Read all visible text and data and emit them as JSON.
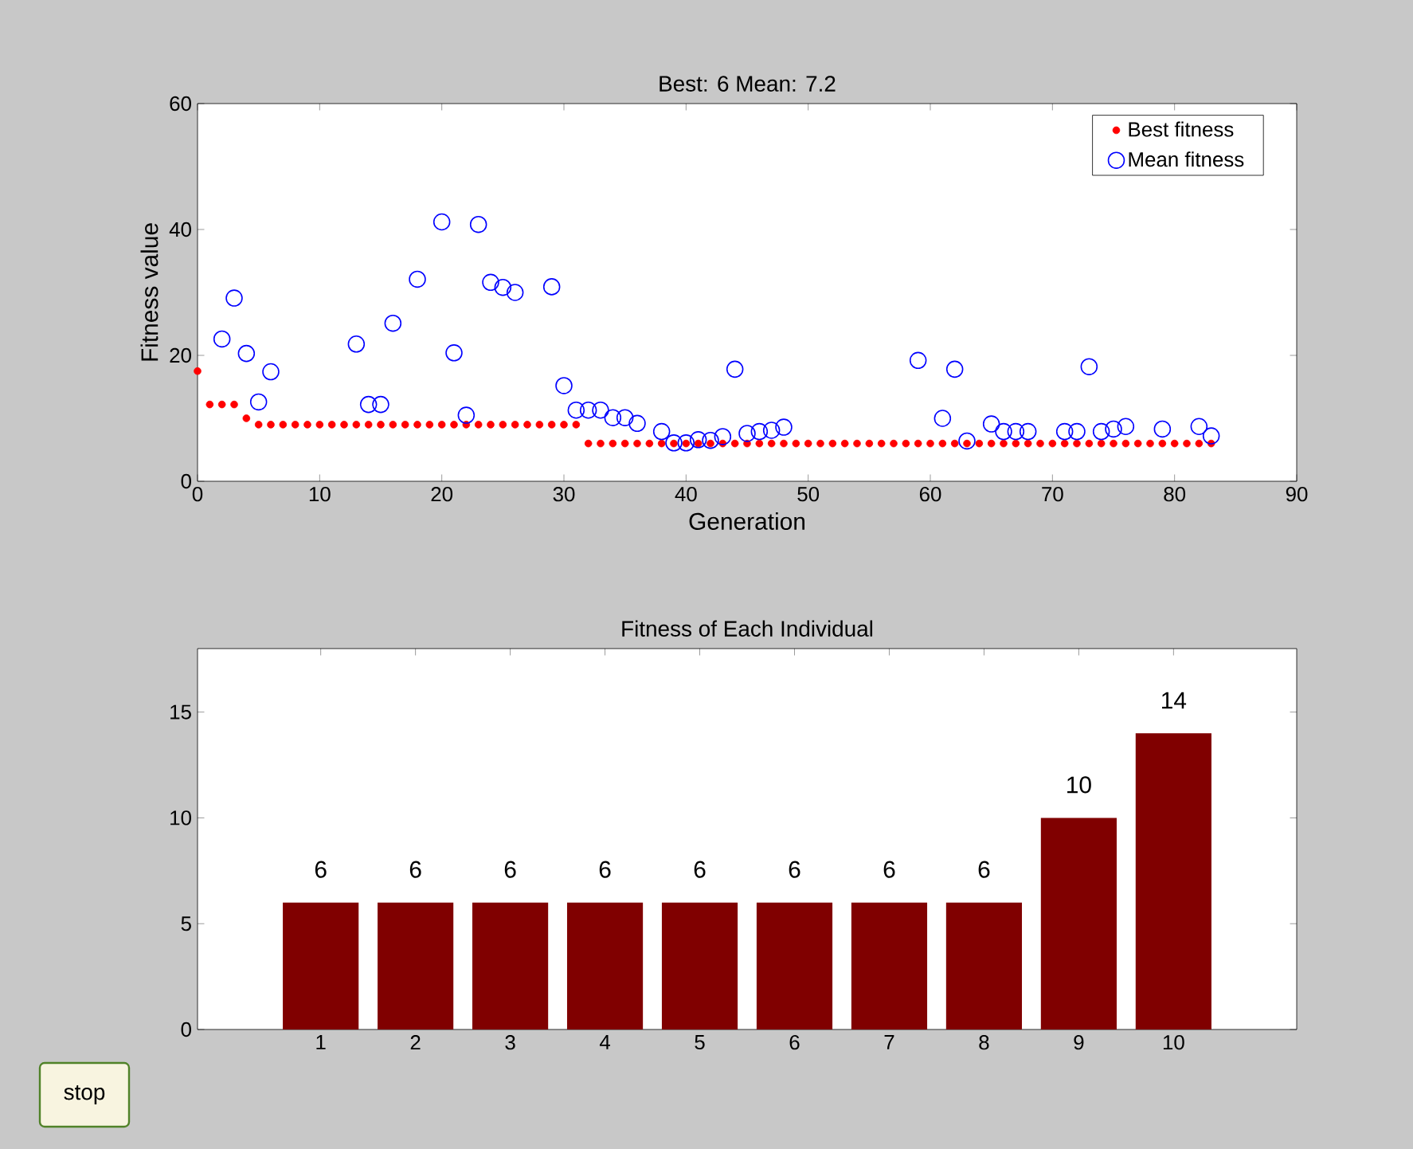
{
  "chart_data": [
    {
      "type": "scatter",
      "title": "Best: 6 Mean: 7.2",
      "xlabel": "Generation",
      "ylabel": "Fitness value",
      "xlim": [
        0,
        90
      ],
      "ylim": [
        0,
        60
      ],
      "xticks": [
        0,
        10,
        20,
        30,
        40,
        50,
        60,
        70,
        80,
        90
      ],
      "yticks": [
        0,
        20,
        40,
        60
      ],
      "legend": "top right",
      "marker": "circle",
      "series": [
        {
          "name": "Best fitness",
          "color": "#ff0000",
          "x": [
            0,
            1,
            2,
            3,
            4,
            5,
            6,
            7,
            8,
            9,
            10,
            11,
            12,
            13,
            14,
            15,
            16,
            17,
            18,
            19,
            20,
            21,
            22,
            23,
            24,
            25,
            26,
            27,
            28,
            29,
            30,
            31,
            32,
            33,
            34,
            35,
            36,
            37,
            38,
            39,
            40,
            41,
            42,
            43,
            44,
            45,
            46,
            47,
            48,
            49,
            50,
            51,
            52,
            53,
            54,
            55,
            56,
            57,
            58,
            59,
            60,
            61,
            62,
            63,
            64,
            65,
            66,
            67,
            68,
            69,
            70,
            71,
            72,
            73,
            74,
            75,
            76,
            77,
            78,
            79,
            80,
            81,
            82,
            83
          ],
          "values": [
            17.5,
            12.2,
            12.2,
            12.2,
            10,
            9,
            9,
            9,
            9,
            9,
            9,
            9,
            9,
            9,
            9,
            9,
            9,
            9,
            9,
            9,
            9,
            9,
            9,
            9,
            9,
            9,
            9,
            9,
            9,
            9,
            9,
            9,
            6,
            6,
            6,
            6,
            6,
            6,
            6,
            6,
            6,
            6,
            6,
            6,
            6,
            6,
            6,
            6,
            6,
            6,
            6,
            6,
            6,
            6,
            6,
            6,
            6,
            6,
            6,
            6,
            6,
            6,
            6,
            6,
            6,
            6,
            6,
            6,
            6,
            6,
            6,
            6,
            6,
            6,
            6,
            6,
            6,
            6,
            6,
            6,
            6,
            6,
            6,
            6
          ]
        },
        {
          "name": "Mean fitness",
          "color": "#0000ff",
          "x": [
            2,
            3,
            4,
            5,
            6,
            13,
            14,
            15,
            16,
            18,
            20,
            21,
            22,
            23,
            24,
            25,
            26,
            29,
            30,
            31,
            32,
            33,
            34,
            35,
            36,
            38,
            39,
            40,
            41,
            42,
            43,
            44,
            45,
            46,
            47,
            48,
            59,
            61,
            62,
            63,
            65,
            66,
            67,
            68,
            71,
            72,
            73,
            74,
            75,
            76,
            79,
            82,
            83
          ],
          "values": [
            22.6,
            29.1,
            20.3,
            12.6,
            17.4,
            21.8,
            12.2,
            12.2,
            25.1,
            32.1,
            41.2,
            20.4,
            10.5,
            40.8,
            31.6,
            30.8,
            30.0,
            30.9,
            15.2,
            11.3,
            11.3,
            11.3,
            10.1,
            10.1,
            9.2,
            7.9,
            6.1,
            6.1,
            6.6,
            6.5,
            7.1,
            17.8,
            7.6,
            7.9,
            8.1,
            8.6,
            19.2,
            10.0,
            17.8,
            6.4,
            9.1,
            7.9,
            7.9,
            7.9,
            7.9,
            7.9,
            18.2,
            7.9,
            8.3,
            8.7,
            8.3,
            8.7,
            7.2
          ]
        }
      ]
    },
    {
      "type": "bar",
      "title": "Fitness of Each Individual",
      "categories": [
        "1",
        "2",
        "3",
        "4",
        "5",
        "6",
        "7",
        "8",
        "9",
        "10"
      ],
      "values": [
        6,
        6,
        6,
        6,
        6,
        6,
        6,
        6,
        10,
        14
      ],
      "color": "#800000",
      "ylim": [
        0,
        18
      ],
      "yticks": [
        0,
        5,
        10,
        15
      ],
      "data_labels": true,
      "annotations": [
        "stop"
      ]
    }
  ]
}
